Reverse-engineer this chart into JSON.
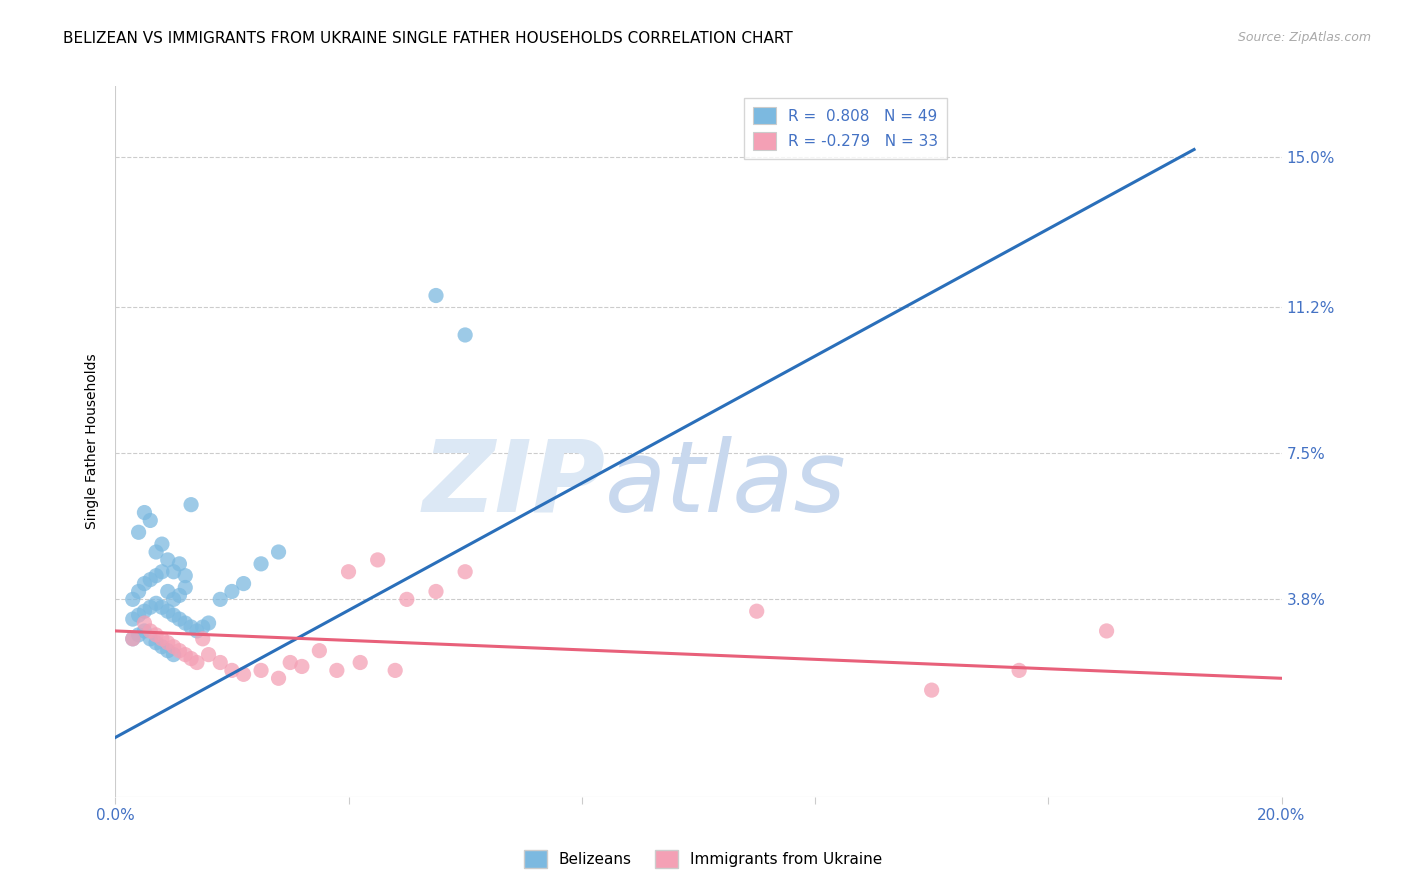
{
  "title": "BELIZEAN VS IMMIGRANTS FROM UKRAINE SINGLE FATHER HOUSEHOLDS CORRELATION CHART",
  "source": "Source: ZipAtlas.com",
  "ylabel": "Single Father Households",
  "ytick_labels": [
    "3.8%",
    "7.5%",
    "11.2%",
    "15.0%"
  ],
  "ytick_values": [
    0.038,
    0.075,
    0.112,
    0.15
  ],
  "xlim": [
    0.0,
    0.2
  ],
  "ylim": [
    -0.012,
    0.168
  ],
  "color_blue": "#7cb9e0",
  "color_pink": "#f4a0b5",
  "color_line_blue": "#2a6fba",
  "color_line_pink": "#e8607a",
  "color_axis_label": "#4472c4",
  "watermark_zip": "ZIP",
  "watermark_atlas": "atlas",
  "watermark_color": "#dce8f5",
  "blue_scatter_x": [
    0.004,
    0.005,
    0.006,
    0.007,
    0.008,
    0.009,
    0.01,
    0.011,
    0.012,
    0.013,
    0.003,
    0.004,
    0.005,
    0.006,
    0.007,
    0.008,
    0.009,
    0.01,
    0.011,
    0.012,
    0.003,
    0.004,
    0.005,
    0.006,
    0.007,
    0.008,
    0.009,
    0.01,
    0.011,
    0.012,
    0.013,
    0.014,
    0.015,
    0.016,
    0.018,
    0.02,
    0.022,
    0.025,
    0.028,
    0.003,
    0.004,
    0.005,
    0.006,
    0.007,
    0.008,
    0.009,
    0.01,
    0.055,
    0.06
  ],
  "blue_scatter_y": [
    0.055,
    0.06,
    0.058,
    0.05,
    0.052,
    0.048,
    0.045,
    0.047,
    0.044,
    0.062,
    0.038,
    0.04,
    0.042,
    0.043,
    0.044,
    0.045,
    0.04,
    0.038,
    0.039,
    0.041,
    0.033,
    0.034,
    0.035,
    0.036,
    0.037,
    0.036,
    0.035,
    0.034,
    0.033,
    0.032,
    0.031,
    0.03,
    0.031,
    0.032,
    0.038,
    0.04,
    0.042,
    0.047,
    0.05,
    0.028,
    0.029,
    0.03,
    0.028,
    0.027,
    0.026,
    0.025,
    0.024,
    0.115,
    0.105
  ],
  "pink_scatter_x": [
    0.003,
    0.005,
    0.006,
    0.007,
    0.008,
    0.009,
    0.01,
    0.011,
    0.012,
    0.013,
    0.014,
    0.015,
    0.016,
    0.018,
    0.02,
    0.022,
    0.025,
    0.028,
    0.03,
    0.032,
    0.035,
    0.038,
    0.04,
    0.042,
    0.045,
    0.048,
    0.05,
    0.055,
    0.06,
    0.11,
    0.14,
    0.155,
    0.17
  ],
  "pink_scatter_y": [
    0.028,
    0.032,
    0.03,
    0.029,
    0.028,
    0.027,
    0.026,
    0.025,
    0.024,
    0.023,
    0.022,
    0.028,
    0.024,
    0.022,
    0.02,
    0.019,
    0.02,
    0.018,
    0.022,
    0.021,
    0.025,
    0.02,
    0.045,
    0.022,
    0.048,
    0.02,
    0.038,
    0.04,
    0.045,
    0.035,
    0.015,
    0.02,
    0.03
  ],
  "blue_line_x": [
    0.0,
    0.185
  ],
  "blue_line_y": [
    0.003,
    0.152
  ],
  "pink_line_x": [
    0.0,
    0.2
  ],
  "pink_line_y": [
    0.03,
    0.018
  ],
  "grid_color": "#cccccc",
  "background_color": "#ffffff"
}
